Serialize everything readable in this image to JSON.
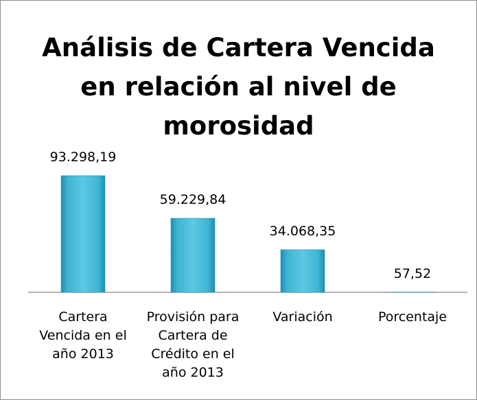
{
  "chart_data": {
    "type": "bar",
    "title": "Análisis de Cartera Vencida en relación al nivel de morosidad",
    "categories": [
      "Cartera Vencida en el año 2013",
      "Provisión para Cartera de Crédito en el año 2013",
      "Variación",
      "Porcentaje"
    ],
    "values": [
      93298.19,
      59229.84,
      34068.35,
      57.52
    ],
    "value_labels": [
      "93.298,19",
      "59.229,84",
      "34.068,35",
      "57,52"
    ],
    "color": "#3fb4d4"
  }
}
